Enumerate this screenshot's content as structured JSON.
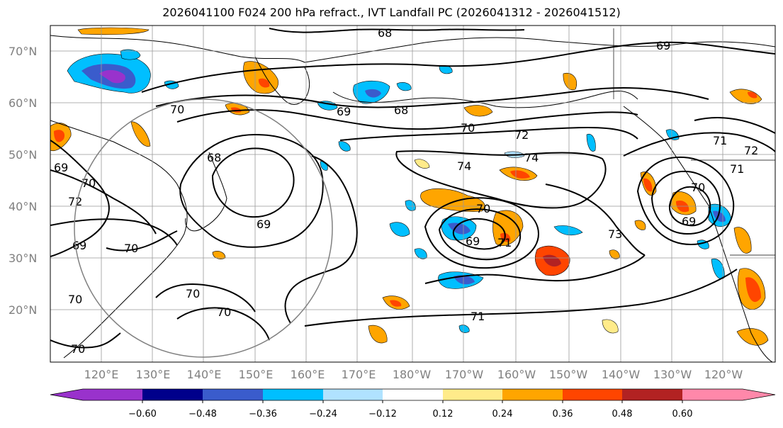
{
  "title": "2026041100 F024 200 hPa refract., IVT Landfall PC (2026041312 - 2026041512)",
  "lat_labels": [
    "70°N",
    "60°N",
    "50°N",
    "40°N",
    "30°N",
    "20°N"
  ],
  "lon_labels": [
    "120°E",
    "130°E",
    "140°E",
    "150°E",
    "160°E",
    "170°E",
    "180°W",
    "170°W",
    "160°W",
    "150°W",
    "140°W",
    "130°W",
    "120°W"
  ],
  "colorbar": {
    "ticks": [
      "−0.60",
      "−0.48",
      "−0.36",
      "−0.24",
      "−0.12",
      "0.12",
      "0.24",
      "0.36",
      "0.48",
      "0.60"
    ],
    "colors": [
      "#9932cc",
      "#00008b",
      "#3a5ccc",
      "#00bfff",
      "#b0e2ff",
      "#ffffff",
      "#ffeb8a",
      "#ffa500",
      "#ff4500",
      "#b22222",
      "#ff88aa"
    ]
  },
  "contour_labels": [
    {
      "text": "68",
      "at": "top center"
    },
    {
      "text": "69",
      "at": "upper right"
    },
    {
      "text": "69",
      "at": "west Pacific"
    },
    {
      "text": "68",
      "at": "north Pacific"
    },
    {
      "text": "70",
      "at": "Japan"
    },
    {
      "text": "70",
      "at": "central Pacific"
    },
    {
      "text": "72",
      "at": "central Pacific"
    },
    {
      "text": "74",
      "at": "central Pacific"
    },
    {
      "text": "74",
      "at": "central Pacific"
    },
    {
      "text": "68",
      "at": "Japan"
    },
    {
      "text": "69",
      "at": "west"
    },
    {
      "text": "70",
      "at": "west"
    },
    {
      "text": "72",
      "at": "west"
    },
    {
      "text": "69",
      "at": "Japan south"
    },
    {
      "text": "69",
      "at": "west"
    },
    {
      "text": "70",
      "at": "west"
    },
    {
      "text": "70",
      "at": "low center"
    },
    {
      "text": "69",
      "at": "low center"
    },
    {
      "text": "71",
      "at": "low center"
    },
    {
      "text": "73",
      "at": "east Pacific"
    },
    {
      "text": "70",
      "at": "east low"
    },
    {
      "text": "69",
      "at": "east low"
    },
    {
      "text": "71",
      "at": "east"
    },
    {
      "text": "72",
      "at": "east"
    },
    {
      "text": "71",
      "at": "east coast"
    },
    {
      "text": "70",
      "at": "southwest"
    },
    {
      "text": "70",
      "at": "southwest"
    },
    {
      "text": "70",
      "at": "southwest"
    },
    {
      "text": "71",
      "at": "south central"
    },
    {
      "text": "70",
      "at": "bottom left"
    }
  ]
}
